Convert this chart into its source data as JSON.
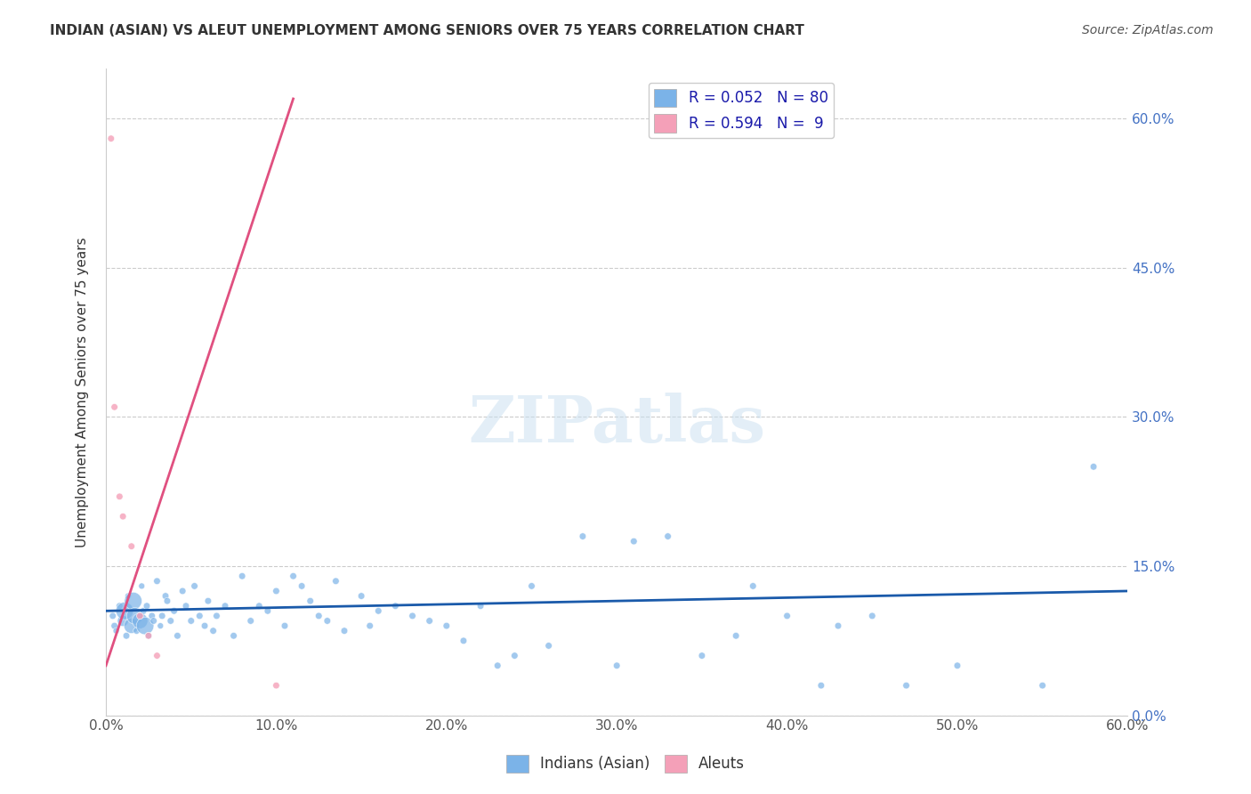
{
  "title": "INDIAN (ASIAN) VS ALEUT UNEMPLOYMENT AMONG SENIORS OVER 75 YEARS CORRELATION CHART",
  "source": "Source: ZipAtlas.com",
  "xlabel_bottom": "",
  "ylabel": "Unemployment Among Seniors over 75 years",
  "x_tick_labels": [
    "0.0%",
    "10.0%",
    "20.0%",
    "30.0%",
    "40.0%",
    "50.0%",
    "60.0%"
  ],
  "x_tick_values": [
    0,
    10,
    20,
    30,
    40,
    50,
    60
  ],
  "y_tick_labels_left": [
    "0.0%",
    "15.0%",
    "30.0%",
    "45.0%",
    "60.0%"
  ],
  "y_tick_values": [
    0,
    15,
    30,
    45,
    60
  ],
  "xlim": [
    0,
    60
  ],
  "ylim": [
    0,
    65
  ],
  "legend_entries": [
    {
      "label": "R = 0.052   N = 80",
      "color": "#a8c8f0"
    },
    {
      "label": "R = 0.594   N =  9",
      "color": "#f4b8c8"
    }
  ],
  "watermark": "ZIPatlas",
  "blue_color": "#7bb3e8",
  "pink_color": "#f4a0b8",
  "blue_line_color": "#1a5aaa",
  "pink_line_color": "#e05080",
  "indian_asian_x": [
    0.4,
    0.5,
    0.6,
    0.8,
    1.0,
    1.1,
    1.2,
    1.3,
    1.5,
    1.6,
    1.7,
    1.8,
    2.0,
    2.1,
    2.2,
    2.3,
    2.4,
    2.5,
    2.7,
    2.8,
    3.0,
    3.2,
    3.3,
    3.5,
    3.6,
    3.8,
    4.0,
    4.2,
    4.5,
    4.7,
    5.0,
    5.2,
    5.5,
    5.8,
    6.0,
    6.3,
    6.5,
    7.0,
    7.5,
    8.0,
    8.5,
    9.0,
    9.5,
    10.0,
    10.5,
    11.0,
    11.5,
    12.0,
    12.5,
    13.0,
    13.5,
    14.0,
    15.0,
    15.5,
    16.0,
    17.0,
    18.0,
    19.0,
    20.0,
    21.0,
    22.0,
    23.0,
    24.0,
    25.0,
    26.0,
    28.0,
    30.0,
    31.0,
    33.0,
    35.0,
    37.0,
    38.0,
    40.0,
    42.0,
    43.0,
    45.0,
    47.0,
    50.0,
    55.0,
    58.0
  ],
  "indian_asian_y": [
    10.0,
    9.0,
    8.5,
    11.0,
    9.5,
    10.5,
    8.0,
    12.0,
    9.0,
    11.5,
    10.0,
    8.5,
    9.5,
    13.0,
    10.5,
    9.0,
    11.0,
    8.0,
    10.0,
    9.5,
    13.5,
    9.0,
    10.0,
    12.0,
    11.5,
    9.5,
    10.5,
    8.0,
    12.5,
    11.0,
    9.5,
    13.0,
    10.0,
    9.0,
    11.5,
    8.5,
    10.0,
    11.0,
    8.0,
    14.0,
    9.5,
    11.0,
    10.5,
    12.5,
    9.0,
    14.0,
    13.0,
    11.5,
    10.0,
    9.5,
    13.5,
    8.5,
    12.0,
    9.0,
    10.5,
    11.0,
    10.0,
    9.5,
    9.0,
    7.5,
    11.0,
    5.0,
    6.0,
    13.0,
    7.0,
    18.0,
    5.0,
    17.5,
    18.0,
    6.0,
    8.0,
    13.0,
    10.0,
    3.0,
    9.0,
    10.0,
    3.0,
    5.0,
    3.0,
    25.0
  ],
  "indian_asian_sizes": [
    30,
    30,
    25,
    30,
    80,
    200,
    30,
    25,
    150,
    200,
    180,
    30,
    160,
    25,
    30,
    200,
    30,
    30,
    30,
    30,
    30,
    25,
    30,
    30,
    30,
    30,
    30,
    30,
    30,
    30,
    30,
    30,
    30,
    30,
    30,
    30,
    30,
    30,
    30,
    30,
    30,
    30,
    30,
    30,
    30,
    30,
    30,
    30,
    30,
    30,
    30,
    30,
    30,
    30,
    30,
    30,
    30,
    30,
    30,
    30,
    30,
    30,
    30,
    30,
    30,
    30,
    30,
    30,
    30,
    30,
    30,
    30,
    30,
    30,
    30,
    30,
    30,
    30,
    30,
    30
  ],
  "aleut_x": [
    0.3,
    0.5,
    0.8,
    1.0,
    1.5,
    2.0,
    2.5,
    3.0,
    10.0
  ],
  "aleut_y": [
    58.0,
    31.0,
    22.0,
    20.0,
    17.0,
    10.0,
    8.0,
    6.0,
    3.0
  ],
  "aleut_sizes": [
    30,
    30,
    30,
    30,
    30,
    30,
    30,
    30,
    30
  ],
  "indian_trend_x": [
    0,
    60
  ],
  "indian_trend_y": [
    10.5,
    12.5
  ],
  "aleut_trend_x": [
    0,
    11
  ],
  "aleut_trend_y": [
    5.0,
    62.0
  ]
}
